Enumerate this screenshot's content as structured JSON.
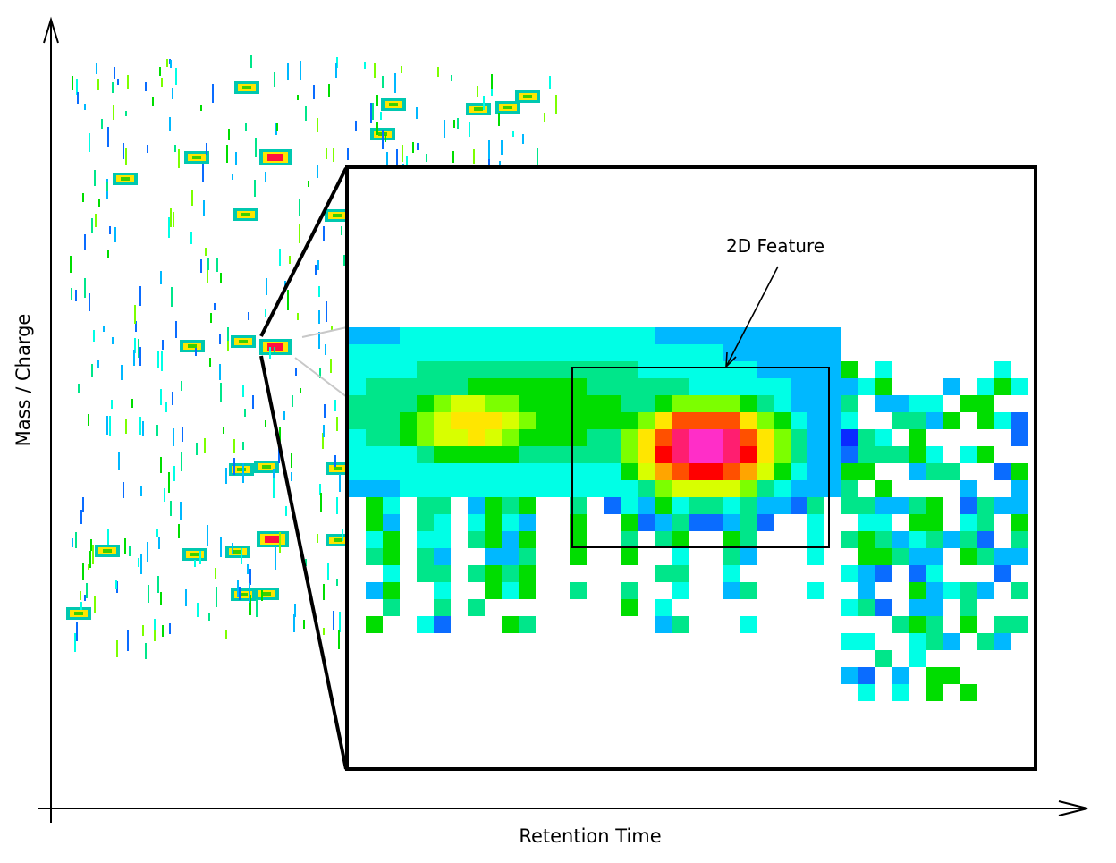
{
  "axes": {
    "x_label": "Retention Time",
    "y_label": "Mass / Charge"
  },
  "annotation": {
    "text": "2D Feature"
  },
  "colors": {
    "axis": "#000000",
    "connector_light": "#c8c8c8",
    "heatmap_scale": [
      "#0a2aff",
      "#0a6cff",
      "#00b8ff",
      "#00ffe6",
      "#00e68a",
      "#00dd00",
      "#7cff00",
      "#d8ff00",
      "#ffe600",
      "#ffa500",
      "#ff5000",
      "#ff0000",
      "#ff1e70",
      "#ff2ec8",
      "#ee22ee"
    ]
  }
}
